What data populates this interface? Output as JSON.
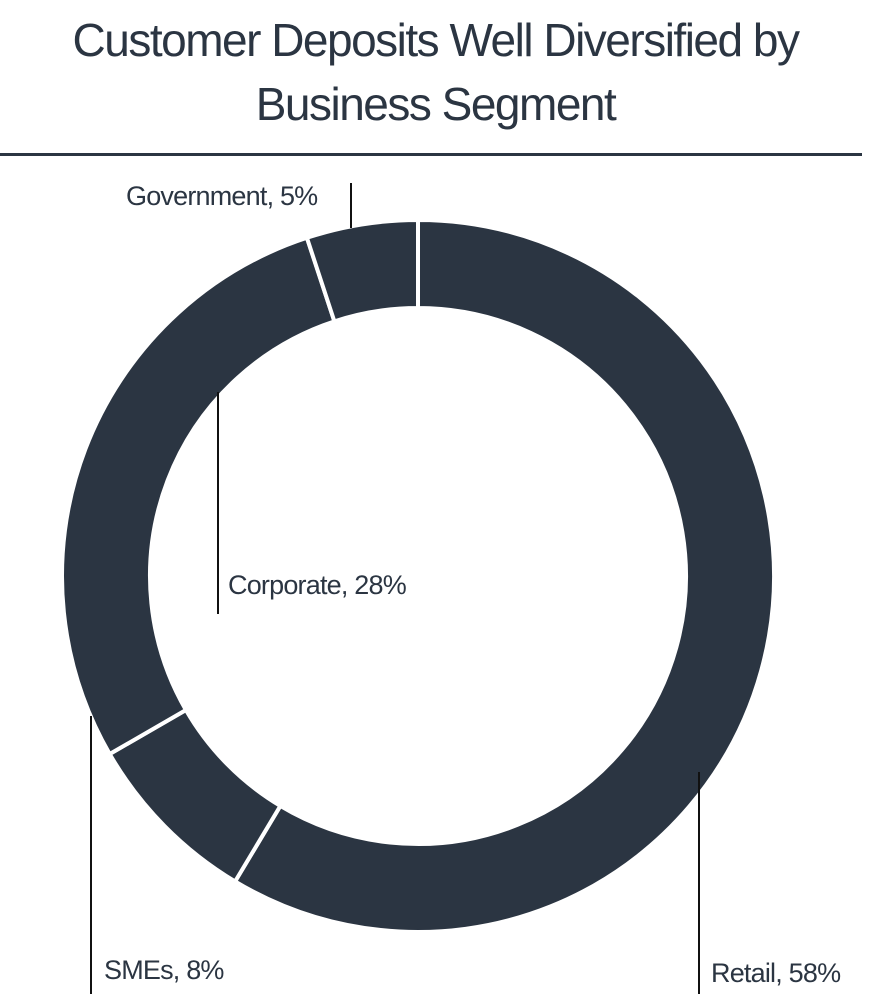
{
  "title_lines": [
    "Customer Deposits Well Diversified by",
    "Business Segment"
  ],
  "colors": {
    "slice": "#2b3542",
    "separator": "#ffffff",
    "leader": "#111111"
  },
  "chart_data": {
    "type": "pie",
    "variant": "donut",
    "title": "Customer Deposits Well Diversified by Business Segment",
    "slices": [
      {
        "name": "Retail",
        "value": 58,
        "label": "Retail, 58%"
      },
      {
        "name": "SMEs",
        "value": 8,
        "label": "SMEs, 8%"
      },
      {
        "name": "Corporate",
        "value": 28,
        "label": "Corporate, 28%"
      },
      {
        "name": "Government",
        "value": 5,
        "label": "Government, 5%"
      }
    ],
    "start_angle": "12 o'clock",
    "direction": "clockwise",
    "legend": "none"
  }
}
